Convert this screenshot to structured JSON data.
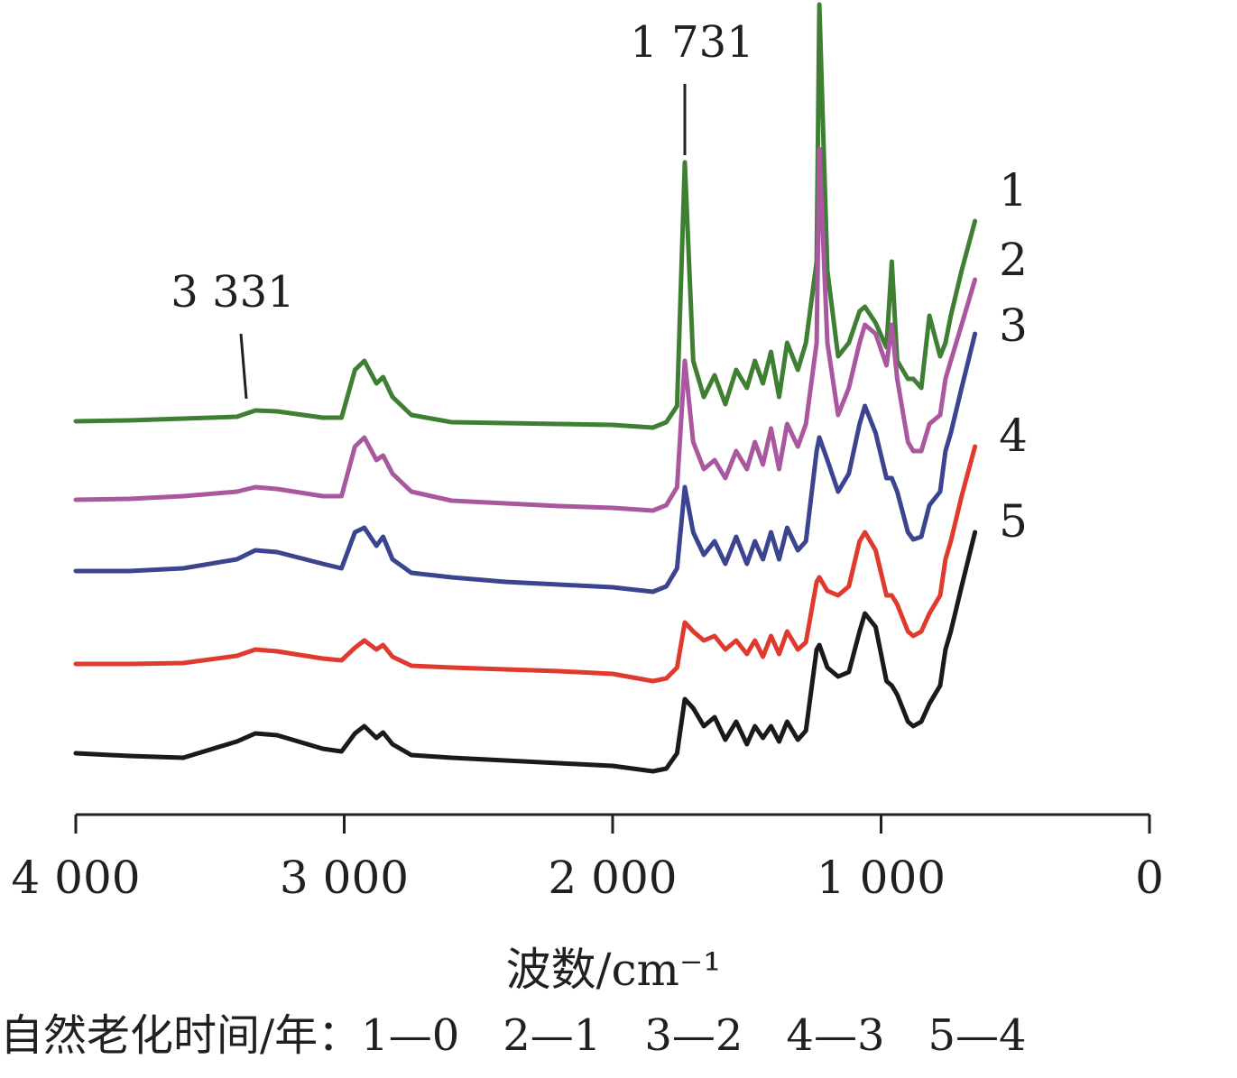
{
  "chart_data": {
    "type": "line",
    "xlabel": "波数/cm⁻¹",
    "ylabel": "",
    "xlim": [
      4000,
      0
    ],
    "x_ticks": [
      {
        "value": 4000,
        "label": "4 000"
      },
      {
        "value": 3000,
        "label": "3 000"
      },
      {
        "value": 2000,
        "label": "2 000"
      },
      {
        "value": 1000,
        "label": "1 000"
      },
      {
        "value": 0,
        "label": "0"
      }
    ],
    "grid": false,
    "annotations": [
      {
        "text": "3 331",
        "x": 3331
      },
      {
        "text": "1 731",
        "x": 1731
      }
    ],
    "legend_text": "自然老化时间/年：1—0　2—1　3—2　4—3　5—4",
    "series": [
      {
        "name": "1",
        "color": "#3f7f34",
        "x": [
          4000,
          3800,
          3600,
          3400,
          3331,
          3250,
          3080,
          3010,
          2960,
          2925,
          2880,
          2855,
          2820,
          2750,
          2600,
          2400,
          2200,
          2000,
          1850,
          1800,
          1760,
          1731,
          1700,
          1660,
          1620,
          1580,
          1540,
          1500,
          1470,
          1440,
          1410,
          1380,
          1350,
          1310,
          1280,
          1240,
          1230,
          1200,
          1160,
          1120,
          1080,
          1060,
          1020,
          980,
          960,
          940,
          900,
          880,
          850,
          820,
          780,
          760,
          740,
          700,
          650
        ],
        "y": [
          467,
          466,
          464,
          462,
          455,
          456,
          463,
          463,
          410,
          400,
          425,
          418,
          440,
          460,
          468,
          469,
          470,
          471,
          474,
          468,
          450,
          180,
          400,
          440,
          416,
          448,
          410,
          430,
          400,
          425,
          390,
          440,
          380,
          410,
          380,
          290,
          5,
          300,
          395,
          380,
          345,
          340,
          358,
          385,
          290,
          400,
          420,
          420,
          430,
          350,
          395,
          380,
          350,
          300,
          245
        ]
      },
      {
        "name": "2",
        "color": "#a9589f",
        "x": [
          4000,
          3800,
          3600,
          3400,
          3331,
          3250,
          3080,
          3010,
          2960,
          2925,
          2880,
          2855,
          2820,
          2750,
          2600,
          2400,
          2200,
          2000,
          1850,
          1800,
          1760,
          1731,
          1700,
          1660,
          1620,
          1580,
          1540,
          1500,
          1470,
          1440,
          1410,
          1380,
          1350,
          1310,
          1280,
          1240,
          1230,
          1200,
          1160,
          1120,
          1080,
          1060,
          1020,
          980,
          960,
          940,
          900,
          880,
          850,
          820,
          780,
          760,
          740,
          700,
          650
        ],
        "y": [
          554,
          553,
          550,
          545,
          540,
          542,
          550,
          550,
          495,
          485,
          510,
          505,
          525,
          545,
          555,
          558,
          561,
          563,
          566,
          560,
          540,
          400,
          490,
          520,
          510,
          530,
          500,
          520,
          490,
          515,
          475,
          520,
          470,
          495,
          470,
          380,
          165,
          380,
          460,
          430,
          380,
          360,
          370,
          405,
          360,
          420,
          490,
          500,
          500,
          470,
          460,
          420,
          400,
          360,
          310
        ]
      },
      {
        "name": "3",
        "color": "#3a448f",
        "x": [
          4000,
          3800,
          3600,
          3400,
          3331,
          3250,
          3080,
          3010,
          2960,
          2925,
          2880,
          2855,
          2820,
          2750,
          2600,
          2400,
          2200,
          2000,
          1850,
          1800,
          1760,
          1731,
          1700,
          1660,
          1620,
          1580,
          1540,
          1500,
          1470,
          1440,
          1410,
          1380,
          1350,
          1310,
          1280,
          1240,
          1230,
          1200,
          1160,
          1120,
          1080,
          1060,
          1020,
          980,
          960,
          940,
          900,
          880,
          850,
          820,
          780,
          760,
          740,
          700,
          650
        ],
        "y": [
          633,
          633,
          630,
          620,
          610,
          612,
          625,
          630,
          590,
          585,
          605,
          595,
          620,
          635,
          640,
          645,
          648,
          651,
          656,
          650,
          630,
          540,
          590,
          615,
          600,
          625,
          595,
          625,
          600,
          620,
          590,
          620,
          585,
          610,
          600,
          500,
          485,
          510,
          545,
          525,
          470,
          450,
          480,
          530,
          530,
          545,
          590,
          598,
          595,
          560,
          545,
          500,
          480,
          430,
          370
        ]
      },
      {
        "name": "4",
        "color": "#e03a2f",
        "x": [
          4000,
          3800,
          3600,
          3400,
          3331,
          3250,
          3080,
          3010,
          2960,
          2925,
          2880,
          2855,
          2820,
          2750,
          2600,
          2400,
          2200,
          2000,
          1850,
          1800,
          1760,
          1731,
          1700,
          1660,
          1620,
          1580,
          1540,
          1500,
          1470,
          1440,
          1410,
          1380,
          1350,
          1310,
          1280,
          1240,
          1230,
          1200,
          1160,
          1120,
          1080,
          1060,
          1020,
          980,
          960,
          940,
          900,
          880,
          850,
          820,
          780,
          760,
          740,
          700,
          650
        ],
        "y": [
          736,
          736,
          735,
          727,
          720,
          722,
          730,
          732,
          718,
          710,
          720,
          715,
          728,
          738,
          740,
          742,
          744,
          747,
          755,
          752,
          740,
          690,
          700,
          710,
          705,
          720,
          710,
          725,
          710,
          728,
          705,
          725,
          700,
          720,
          712,
          645,
          640,
          655,
          660,
          650,
          600,
          590,
          610,
          660,
          660,
          670,
          700,
          705,
          700,
          680,
          660,
          620,
          600,
          550,
          495
        ]
      },
      {
        "name": "5",
        "color": "#1a1a1a",
        "x": [
          4000,
          3800,
          3600,
          3400,
          3331,
          3250,
          3080,
          3010,
          2960,
          2925,
          2880,
          2855,
          2820,
          2750,
          2600,
          2400,
          2200,
          2000,
          1850,
          1800,
          1760,
          1731,
          1700,
          1660,
          1620,
          1580,
          1540,
          1500,
          1470,
          1440,
          1410,
          1380,
          1350,
          1310,
          1280,
          1240,
          1230,
          1200,
          1160,
          1120,
          1080,
          1060,
          1020,
          980,
          960,
          940,
          900,
          880,
          850,
          820,
          780,
          760,
          740,
          700,
          650
        ],
        "y": [
          835,
          838,
          840,
          822,
          813,
          815,
          830,
          833,
          813,
          805,
          818,
          812,
          825,
          837,
          840,
          843,
          846,
          849,
          855,
          852,
          835,
          775,
          785,
          805,
          795,
          820,
          800,
          825,
          805,
          818,
          805,
          822,
          800,
          820,
          810,
          720,
          715,
          740,
          750,
          745,
          700,
          680,
          695,
          755,
          760,
          770,
          800,
          805,
          800,
          780,
          760,
          720,
          700,
          650,
          590
        ]
      }
    ]
  }
}
